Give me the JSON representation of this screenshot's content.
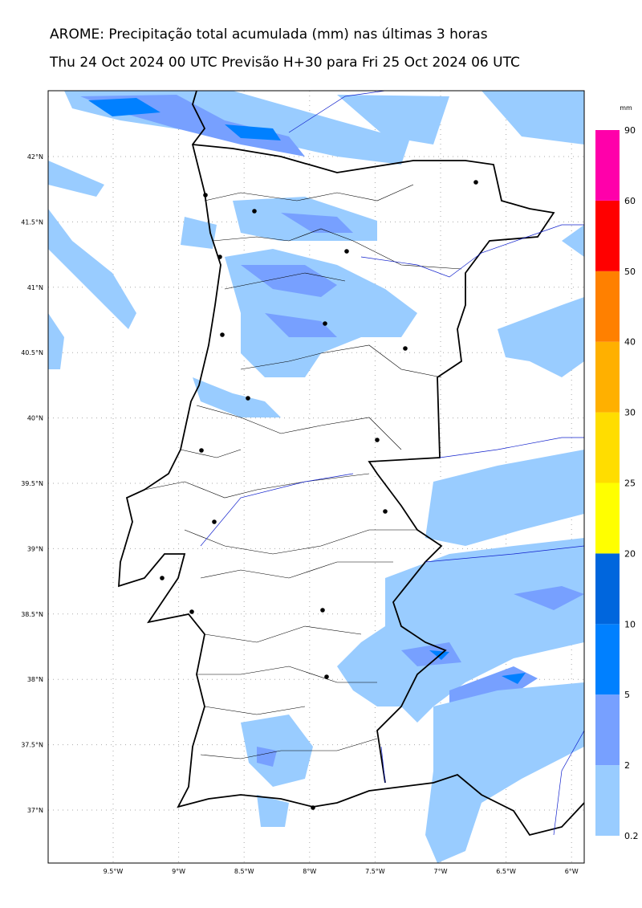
{
  "header": {
    "title": "AROME: Precipitação total acumulada (mm) nas últimas 3 horas",
    "subtitle": "Thu 24 Oct 2024 00 UTC Previsão H+30 para Fri 25 Oct 2024 06 UTC"
  },
  "map": {
    "lat_labels": [
      "42°N",
      "41.5°N",
      "41°N",
      "40.5°N",
      "40°N",
      "39.5°N",
      "39°N",
      "38.5°N",
      "38°N",
      "37.5°N",
      "37°N"
    ],
    "lon_labels": [
      "9.5°W",
      "9°W",
      "8.5°W",
      "8°W",
      "7.5°W",
      "7°W",
      "6.5°W",
      "6°W"
    ]
  },
  "colorbar": {
    "unit": "mm",
    "levels": [
      0.2,
      2,
      5,
      10,
      20,
      25,
      30,
      40,
      50,
      60,
      90
    ],
    "colors": [
      "#99ccff",
      "#77a0ff",
      "#0080ff",
      "#0066dd",
      "#ffff00",
      "#ffdd00",
      "#ffb000",
      "#ff8000",
      "#ff0000",
      "#ff00aa"
    ]
  }
}
